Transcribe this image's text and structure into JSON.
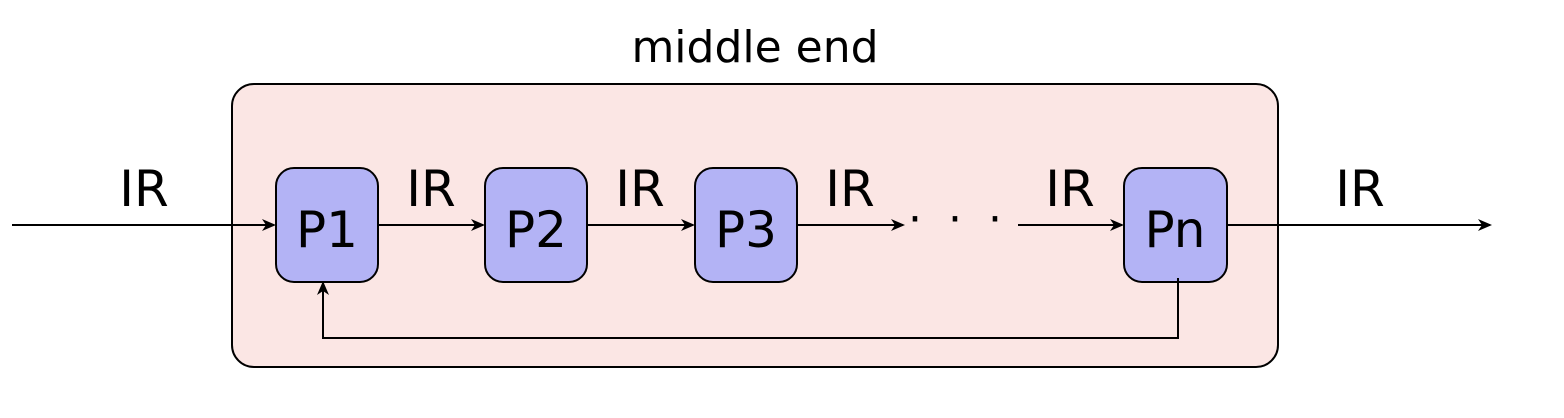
{
  "title": "middle end",
  "input_label": "IR",
  "output_label": "IR",
  "passes": [
    {
      "label": "P1"
    },
    {
      "label": "P2"
    },
    {
      "label": "P3"
    },
    {
      "label": "Pn"
    }
  ],
  "edge_labels": [
    "IR",
    "IR",
    "IR",
    "IR"
  ],
  "ellipsis": "· · ·",
  "colors": {
    "container_fill": "#fbe6e4",
    "pass_fill": "#b3b3f5",
    "stroke": "#000000"
  }
}
